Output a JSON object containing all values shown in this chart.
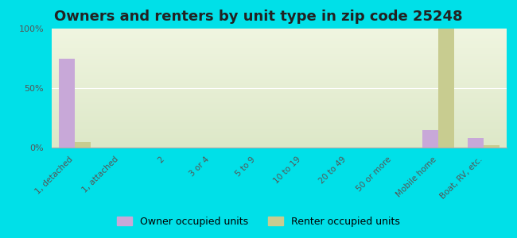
{
  "title": "Owners and renters by unit type in zip code 25248",
  "categories": [
    "1, detached",
    "1, attached",
    "2",
    "3 or 4",
    "5 to 9",
    "10 to 19",
    "20 to 49",
    "50 or more",
    "Mobile home",
    "Boat, RV, etc."
  ],
  "owner_values": [
    75,
    0,
    0,
    0,
    0,
    0,
    0,
    0,
    15,
    8
  ],
  "renter_values": [
    5,
    0,
    0,
    0,
    0,
    0,
    0,
    0,
    100,
    2
  ],
  "owner_color": "#c8a8d8",
  "renter_color": "#c8cc90",
  "bg_plot_light": "#f0f5e0",
  "bg_plot_dark": "#dde8c8",
  "bg_outer": "#00e0e8",
  "ylim": [
    0,
    100
  ],
  "yticks": [
    0,
    50,
    100
  ],
  "ytick_labels": [
    "0%",
    "50%",
    "100%"
  ],
  "bar_width": 0.35,
  "title_fontsize": 13,
  "legend_labels": [
    "Owner occupied units",
    "Renter occupied units"
  ]
}
